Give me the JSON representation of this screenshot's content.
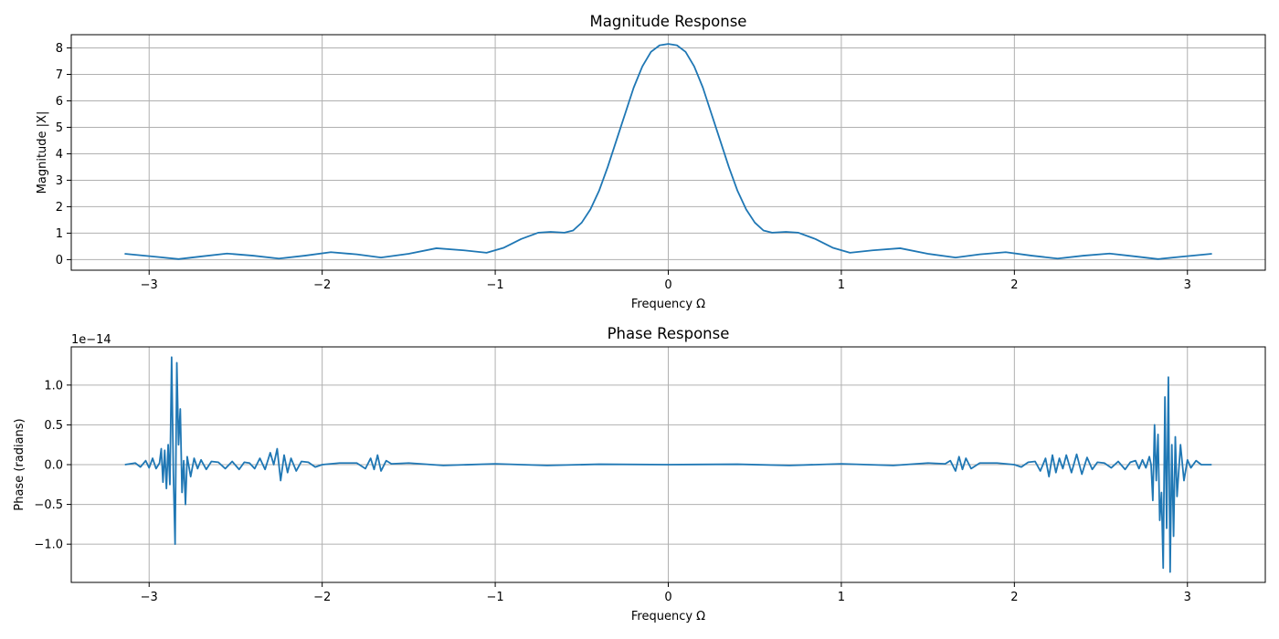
{
  "colors": {
    "series": "#1f77b4",
    "grid": "#b0b0b0"
  },
  "chart_data": [
    {
      "type": "line",
      "title": "Magnitude Response",
      "xlabel": "Frequency Ω",
      "ylabel": "Magnitude |X|",
      "xlim": [
        -3.45,
        3.45
      ],
      "ylim": [
        -0.4,
        8.5
      ],
      "grid": true,
      "x_ticks": [
        -3,
        -2,
        -1,
        0,
        1,
        2,
        3
      ],
      "x_tick_labels": [
        "−3",
        "−2",
        "−1",
        "0",
        "1",
        "2",
        "3"
      ],
      "y_ticks": [
        0,
        1,
        2,
        3,
        4,
        5,
        6,
        7,
        8
      ],
      "y_tick_labels": [
        "0",
        "1",
        "2",
        "3",
        "4",
        "5",
        "6",
        "7",
        "8"
      ],
      "offset_label": "",
      "series": [
        {
          "x": [
            -3.1416,
            -2.95,
            -2.83,
            -2.7,
            -2.55,
            -2.4,
            -2.25,
            -2.1,
            -1.95,
            -1.8,
            -1.66,
            -1.5,
            -1.34,
            -1.18,
            -1.05,
            -0.95,
            -0.85,
            -0.75,
            -0.68,
            -0.6,
            -0.55,
            -0.5,
            -0.45,
            -0.4,
            -0.35,
            -0.3,
            -0.25,
            -0.2,
            -0.15,
            -0.1,
            -0.05,
            0,
            0.05,
            0.1,
            0.15,
            0.2,
            0.25,
            0.3,
            0.35,
            0.4,
            0.45,
            0.5,
            0.55,
            0.6,
            0.68,
            0.75,
            0.85,
            0.95,
            1.05,
            1.18,
            1.34,
            1.5,
            1.66,
            1.8,
            1.95,
            2.1,
            2.25,
            2.4,
            2.55,
            2.7,
            2.83,
            2.95,
            3.1416
          ],
          "y": [
            0.22,
            0.1,
            0.02,
            0.12,
            0.23,
            0.15,
            0.04,
            0.15,
            0.28,
            0.2,
            0.08,
            0.22,
            0.43,
            0.35,
            0.26,
            0.45,
            0.78,
            1.02,
            1.05,
            1.02,
            1.1,
            1.4,
            1.9,
            2.6,
            3.5,
            4.5,
            5.5,
            6.5,
            7.3,
            7.85,
            8.1,
            8.15,
            8.1,
            7.85,
            7.3,
            6.5,
            5.5,
            4.5,
            3.5,
            2.6,
            1.9,
            1.4,
            1.1,
            1.02,
            1.05,
            1.02,
            0.78,
            0.45,
            0.26,
            0.35,
            0.43,
            0.22,
            0.08,
            0.2,
            0.28,
            0.15,
            0.04,
            0.15,
            0.23,
            0.12,
            0.02,
            0.1,
            0.22
          ]
        }
      ]
    },
    {
      "type": "line",
      "title": "Phase Response",
      "xlabel": "Frequency Ω",
      "ylabel": "Phase (radians)",
      "xlim": [
        -3.45,
        3.45
      ],
      "ylim": [
        -1.48,
        1.48
      ],
      "grid": true,
      "x_ticks": [
        -3,
        -2,
        -1,
        0,
        1,
        2,
        3
      ],
      "x_tick_labels": [
        "−3",
        "−2",
        "−1",
        "0",
        "1",
        "2",
        "3"
      ],
      "y_ticks": [
        -1.0,
        -0.5,
        0.0,
        0.5,
        1.0
      ],
      "y_tick_labels": [
        "−1.0",
        "−0.5",
        "0.0",
        "0.5",
        "1.0"
      ],
      "offset_label": "1e−14",
      "series": [
        {
          "x": [
            -3.14,
            -3.08,
            -3.05,
            -3.02,
            -3.0,
            -2.98,
            -2.96,
            -2.94,
            -2.93,
            -2.92,
            -2.91,
            -2.9,
            -2.89,
            -2.88,
            -2.87,
            -2.86,
            -2.85,
            -2.84,
            -2.83,
            -2.82,
            -2.81,
            -2.8,
            -2.79,
            -2.78,
            -2.76,
            -2.74,
            -2.72,
            -2.7,
            -2.67,
            -2.64,
            -2.6,
            -2.56,
            -2.52,
            -2.48,
            -2.45,
            -2.42,
            -2.39,
            -2.36,
            -2.33,
            -2.3,
            -2.28,
            -2.26,
            -2.24,
            -2.22,
            -2.2,
            -2.18,
            -2.15,
            -2.12,
            -2.08,
            -2.04,
            -2.0,
            -1.9,
            -1.8,
            -1.75,
            -1.72,
            -1.7,
            -1.68,
            -1.66,
            -1.63,
            -1.6,
            -1.5,
            -1.3,
            -1.0,
            -0.7,
            -0.4,
            0.0,
            0.4,
            0.7,
            1.0,
            1.3,
            1.5,
            1.6,
            1.63,
            1.66,
            1.68,
            1.7,
            1.72,
            1.75,
            1.8,
            1.9,
            2.0,
            2.04,
            2.08,
            2.12,
            2.15,
            2.18,
            2.2,
            2.22,
            2.24,
            2.26,
            2.28,
            2.3,
            2.33,
            2.36,
            2.39,
            2.42,
            2.45,
            2.48,
            2.52,
            2.56,
            2.6,
            2.64,
            2.67,
            2.7,
            2.72,
            2.74,
            2.76,
            2.78,
            2.79,
            2.8,
            2.81,
            2.82,
            2.83,
            2.84,
            2.85,
            2.86,
            2.87,
            2.88,
            2.89,
            2.9,
            2.91,
            2.92,
            2.93,
            2.94,
            2.96,
            2.98,
            3.0,
            3.02,
            3.05,
            3.08,
            3.14
          ],
          "y": [
            0.0,
            0.02,
            -0.03,
            0.05,
            -0.04,
            0.08,
            -0.05,
            0.02,
            0.2,
            -0.22,
            0.18,
            -0.3,
            0.25,
            -0.25,
            1.35,
            -0.1,
            -1.0,
            1.28,
            0.25,
            0.7,
            -0.35,
            0.05,
            -0.5,
            0.1,
            -0.15,
            0.08,
            -0.05,
            0.06,
            -0.06,
            0.04,
            0.03,
            -0.05,
            0.04,
            -0.06,
            0.03,
            0.02,
            -0.05,
            0.08,
            -0.06,
            0.15,
            0.0,
            0.2,
            -0.2,
            0.12,
            -0.1,
            0.08,
            -0.08,
            0.04,
            0.03,
            -0.03,
            0.0,
            0.02,
            0.02,
            -0.05,
            0.08,
            -0.06,
            0.12,
            -0.08,
            0.05,
            0.01,
            0.02,
            -0.01,
            0.01,
            -0.01,
            0.005,
            0.0,
            0.005,
            -0.01,
            0.01,
            -0.01,
            0.02,
            0.01,
            0.05,
            -0.08,
            0.1,
            -0.06,
            0.08,
            -0.05,
            0.02,
            0.02,
            0.0,
            -0.03,
            0.03,
            0.04,
            -0.08,
            0.08,
            -0.15,
            0.12,
            -0.1,
            0.08,
            -0.05,
            0.12,
            -0.1,
            0.13,
            -0.12,
            0.09,
            -0.06,
            0.03,
            0.02,
            -0.04,
            0.04,
            -0.06,
            0.03,
            0.05,
            -0.05,
            0.06,
            -0.04,
            0.1,
            0.0,
            -0.45,
            0.5,
            -0.2,
            0.38,
            -0.7,
            -0.35,
            -1.3,
            0.85,
            -0.8,
            1.1,
            -1.35,
            0.25,
            -0.9,
            0.35,
            -0.4,
            0.25,
            -0.2,
            0.06,
            -0.04,
            0.05,
            0.0,
            0.0
          ]
        }
      ]
    }
  ]
}
